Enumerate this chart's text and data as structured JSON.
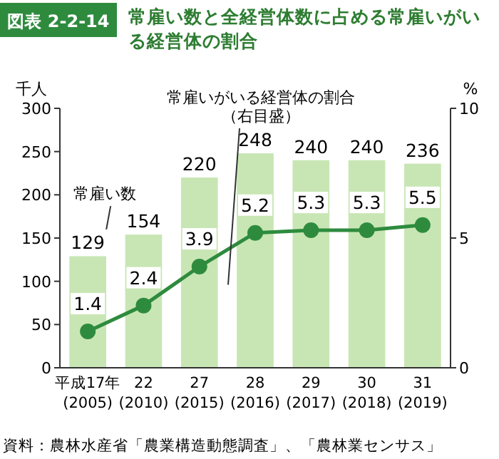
{
  "chart_data": {
    "type": "bar",
    "title": "常雇い数と全経営体数に占める常雇いがいる経営体の割合",
    "categories": [
      "平成17年\n(2005)",
      "22\n(2010)",
      "27\n(2015)",
      "28\n(2016)",
      "29\n(2017)",
      "30\n(2018)",
      "31\n(2019)"
    ],
    "series": [
      {
        "name": "常雇い数",
        "type": "bar",
        "color": "#c8e6b4",
        "values": [
          129,
          154,
          220,
          248,
          240,
          240,
          236
        ]
      },
      {
        "name": "常雇いがいる経営体の割合（右目盛）",
        "type": "line",
        "axis": "y2",
        "color": "#2e8b3e",
        "marker": "circle",
        "values": [
          1.4,
          2.4,
          3.9,
          5.2,
          5.3,
          5.3,
          5.5
        ]
      }
    ],
    "ylabel": "千人",
    "y2label": "%",
    "ylim": [
      0,
      300
    ],
    "yticks": [
      0,
      50,
      100,
      150,
      200,
      250,
      300
    ],
    "y2lim": [
      0,
      10
    ],
    "y2ticks": [
      0,
      5,
      10
    ],
    "data_labels": true,
    "annotations": [
      "図表 2-2-14",
      "資料：農林水産省「農業構造動態調査」、「農林業センサス」"
    ]
  }
}
